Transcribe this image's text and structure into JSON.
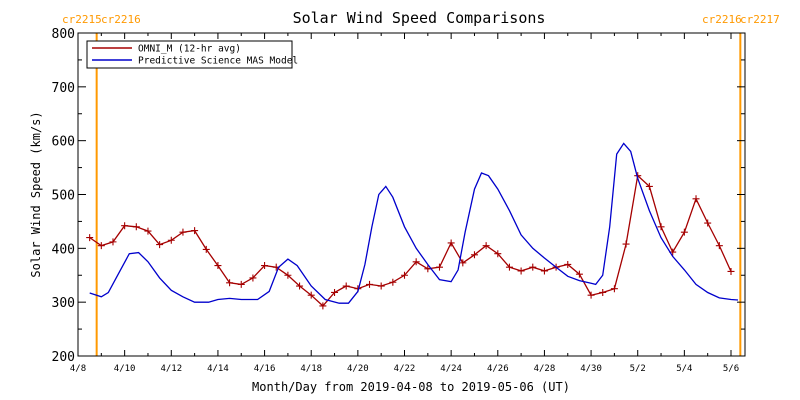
{
  "chart_data": {
    "type": "line",
    "title": "Solar Wind Speed Comparisons",
    "xlabel": "Month/Day from 2019-04-08 to 2019-05-06 (UT)",
    "ylabel": "Solar Wind Speed (km/s)",
    "ylim": [
      200,
      800
    ],
    "xlim_days": [
      0,
      28.6
    ],
    "grid": false,
    "legend_position": "top-left",
    "x_tick_labels": [
      "4/8",
      "4/10",
      "4/12",
      "4/14",
      "4/16",
      "4/18",
      "4/20",
      "4/22",
      "4/24",
      "4/26",
      "4/28",
      "4/30",
      "5/2",
      "5/4",
      "5/6"
    ],
    "y_tick_labels": [
      "200",
      "300",
      "400",
      "500",
      "600",
      "700",
      "800"
    ],
    "carrington_markers": [
      {
        "day": 0.8,
        "left_label": "cr2215",
        "right_label": "cr2216",
        "color": "#FF9900"
      },
      {
        "day": 28.4,
        "left_label": "cr2216",
        "right_label": "cr2217",
        "color": "#FF9900"
      }
    ],
    "series": [
      {
        "name": "OMNI_M (12-hr avg)",
        "color": "#A50000",
        "marker": "plus",
        "points": [
          [
            0.5,
            420
          ],
          [
            1.0,
            405
          ],
          [
            1.5,
            412
          ],
          [
            2.0,
            442
          ],
          [
            2.5,
            440
          ],
          [
            3.0,
            432
          ],
          [
            3.5,
            407
          ],
          [
            4.0,
            415
          ],
          [
            4.5,
            430
          ],
          [
            5.0,
            433
          ],
          [
            5.5,
            398
          ],
          [
            6.0,
            368
          ],
          [
            6.5,
            336
          ],
          [
            7.0,
            333
          ],
          [
            7.5,
            345
          ],
          [
            8.0,
            368
          ],
          [
            8.5,
            365
          ],
          [
            9.0,
            350
          ],
          [
            9.5,
            330
          ],
          [
            10.0,
            313
          ],
          [
            10.5,
            293
          ],
          [
            11.0,
            318
          ],
          [
            11.5,
            330
          ],
          [
            12.0,
            325
          ],
          [
            12.5,
            333
          ],
          [
            13.0,
            330
          ],
          [
            13.5,
            337
          ],
          [
            14.0,
            350
          ],
          [
            14.5,
            375
          ],
          [
            15.0,
            362
          ],
          [
            15.5,
            365
          ],
          [
            16.0,
            410
          ],
          [
            16.5,
            373
          ],
          [
            17.0,
            388
          ],
          [
            17.5,
            405
          ],
          [
            18.0,
            390
          ],
          [
            18.5,
            365
          ],
          [
            19.0,
            358
          ],
          [
            19.5,
            365
          ],
          [
            20.0,
            358
          ],
          [
            20.5,
            365
          ],
          [
            21.0,
            370
          ],
          [
            21.5,
            352
          ],
          [
            22.0,
            313
          ],
          [
            22.5,
            318
          ],
          [
            23.0,
            325
          ],
          [
            23.5,
            408
          ],
          [
            24.0,
            535
          ],
          [
            24.5,
            515
          ],
          [
            25.0,
            440
          ],
          [
            25.5,
            393
          ],
          [
            26.0,
            430
          ],
          [
            26.5,
            492
          ],
          [
            27.0,
            447
          ],
          [
            27.5,
            405
          ],
          [
            28.0,
            357
          ]
        ]
      },
      {
        "name": "Predictive Science MAS Model",
        "color": "#0000CC",
        "marker": "none",
        "points": [
          [
            0.5,
            317
          ],
          [
            1.0,
            310
          ],
          [
            1.3,
            318
          ],
          [
            1.7,
            350
          ],
          [
            2.2,
            390
          ],
          [
            2.6,
            392
          ],
          [
            3.0,
            375
          ],
          [
            3.5,
            345
          ],
          [
            4.0,
            322
          ],
          [
            4.5,
            310
          ],
          [
            5.0,
            300
          ],
          [
            5.6,
            300
          ],
          [
            6.0,
            305
          ],
          [
            6.5,
            307
          ],
          [
            7.0,
            305
          ],
          [
            7.7,
            305
          ],
          [
            8.2,
            320
          ],
          [
            8.6,
            365
          ],
          [
            9.0,
            380
          ],
          [
            9.4,
            368
          ],
          [
            10.0,
            330
          ],
          [
            10.6,
            305
          ],
          [
            11.2,
            298
          ],
          [
            11.6,
            298
          ],
          [
            12.0,
            320
          ],
          [
            12.3,
            370
          ],
          [
            12.6,
            440
          ],
          [
            12.9,
            500
          ],
          [
            13.2,
            515
          ],
          [
            13.5,
            495
          ],
          [
            14.0,
            440
          ],
          [
            14.5,
            400
          ],
          [
            15.0,
            370
          ],
          [
            15.5,
            342
          ],
          [
            16.0,
            338
          ],
          [
            16.3,
            360
          ],
          [
            16.6,
            430
          ],
          [
            17.0,
            510
          ],
          [
            17.3,
            540
          ],
          [
            17.6,
            535
          ],
          [
            18.0,
            510
          ],
          [
            18.5,
            470
          ],
          [
            19.0,
            425
          ],
          [
            19.5,
            400
          ],
          [
            20.0,
            382
          ],
          [
            20.5,
            365
          ],
          [
            21.0,
            348
          ],
          [
            21.5,
            340
          ],
          [
            22.0,
            335
          ],
          [
            22.2,
            333
          ],
          [
            22.5,
            350
          ],
          [
            22.8,
            440
          ],
          [
            23.1,
            575
          ],
          [
            23.4,
            595
          ],
          [
            23.7,
            580
          ],
          [
            24.0,
            530
          ],
          [
            24.5,
            470
          ],
          [
            25.0,
            420
          ],
          [
            25.5,
            385
          ],
          [
            26.0,
            360
          ],
          [
            26.5,
            333
          ],
          [
            27.0,
            318
          ],
          [
            27.5,
            308
          ],
          [
            28.0,
            305
          ],
          [
            28.3,
            304
          ]
        ]
      }
    ]
  }
}
